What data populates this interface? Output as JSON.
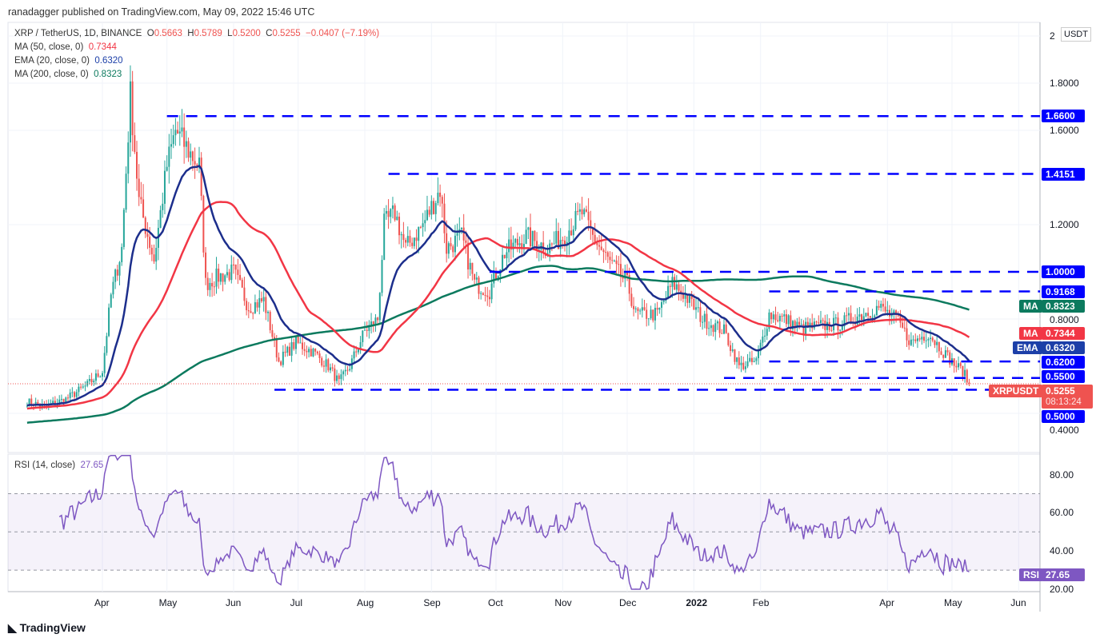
{
  "header": {
    "published": "ranadagger published on TradingView.com, May 09, 2022 15:46 UTC"
  },
  "legend": {
    "symbol": "XRP / TetherUS, 1D, BINANCE",
    "o_label": "O",
    "o": "0.5663",
    "h_label": "H",
    "h": "0.5789",
    "l_label": "L",
    "l": "0.5200",
    "c_label": "C",
    "c": "0.5255",
    "change": "−0.0407 (−7.19%)",
    "ma50": "MA (50, close, 0)",
    "ma50_val": "0.7344",
    "ema20": "EMA (20, close, 0)",
    "ema20_val": "0.6320",
    "ma200": "MA (200, close, 0)",
    "ma200_val": "0.8323"
  },
  "rsi_legend": {
    "label": "RSI (14, close)",
    "value": "27.65"
  },
  "axis": {
    "currency": "USDT",
    "price_ticks": [
      "2",
      "1.8000",
      "1.6000",
      "1.2000",
      "0.8000",
      "0.4000"
    ],
    "rsi_ticks": [
      "80.00",
      "60.00",
      "40.00",
      "20.00"
    ],
    "months": [
      "Apr",
      "May",
      "Jun",
      "Jul",
      "Aug",
      "Sep",
      "Oct",
      "Nov",
      "Dec",
      "2022",
      "Feb",
      "Apr",
      "May",
      "Jun"
    ]
  },
  "tags": {
    "ma200": {
      "name": "MA",
      "value": "0.8323"
    },
    "ma50": {
      "name": "MA",
      "value": "0.7344"
    },
    "ema20": {
      "name": "EMA",
      "value": "0.6320"
    },
    "price": {
      "name": "XRPUSDT",
      "value": "0.5255",
      "countdown": "08:13:24"
    },
    "rsi": {
      "name": "RSI",
      "value": "27.65"
    }
  },
  "levels": [
    {
      "label": "1.6600",
      "value": 1.66,
      "from": "2021-05-01"
    },
    {
      "label": "1.4151",
      "value": 1.4151,
      "from": "2021-08-12"
    },
    {
      "label": "1.0000",
      "value": 1.0,
      "from": "2021-09-28"
    },
    {
      "label": "0.9168",
      "value": 0.9168,
      "from": "2022-02-05"
    },
    {
      "label": "0.6200",
      "value": 0.62,
      "from": "2022-02-05"
    },
    {
      "label": "0.5500",
      "value": 0.55,
      "from": "2022-01-15"
    },
    {
      "label": "0.5000",
      "value": 0.5,
      "from": "2021-06-20"
    }
  ],
  "colors": {
    "up": "#26a69a",
    "down": "#ef5350",
    "ma50": "#f23645",
    "ema20": "#1c2e8c",
    "ma200": "#0c7a5e",
    "level": "#0000ff",
    "rsi": "#7e57c2"
  },
  "footer": {
    "brand": "TradingView"
  },
  "chart_data": {
    "type": "candlestick",
    "title": "XRP / TetherUS, 1D, BINANCE",
    "ylim": [
      0.4,
      2.0
    ],
    "rsi_ylim": [
      20,
      90
    ],
    "keypoints": [
      [
        "2021-02-25",
        0.45
      ],
      [
        "2021-03-05",
        0.43
      ],
      [
        "2021-03-15",
        0.46
      ],
      [
        "2021-03-25",
        0.52
      ],
      [
        "2021-04-01",
        0.58
      ],
      [
        "2021-04-05",
        0.9
      ],
      [
        "2021-04-10",
        1.1
      ],
      [
        "2021-04-14",
        1.75
      ],
      [
        "2021-04-18",
        1.3
      ],
      [
        "2021-04-25",
        1.05
      ],
      [
        "2021-05-01",
        1.45
      ],
      [
        "2021-05-05",
        1.6
      ],
      [
        "2021-05-12",
        1.5
      ],
      [
        "2021-05-16",
        1.45
      ],
      [
        "2021-05-19",
        0.95
      ],
      [
        "2021-05-25",
        0.98
      ],
      [
        "2021-06-01",
        1.0
      ],
      [
        "2021-06-08",
        0.85
      ],
      [
        "2021-06-15",
        0.88
      ],
      [
        "2021-06-22",
        0.62
      ],
      [
        "2021-06-30",
        0.7
      ],
      [
        "2021-07-08",
        0.66
      ],
      [
        "2021-07-15",
        0.6
      ],
      [
        "2021-07-20",
        0.53
      ],
      [
        "2021-07-25",
        0.6
      ],
      [
        "2021-08-01",
        0.75
      ],
      [
        "2021-08-07",
        0.8
      ],
      [
        "2021-08-10",
        1.2
      ],
      [
        "2021-08-15",
        1.25
      ],
      [
        "2021-08-20",
        1.1
      ],
      [
        "2021-08-28",
        1.2
      ],
      [
        "2021-09-05",
        1.35
      ],
      [
        "2021-09-08",
        1.1
      ],
      [
        "2021-09-15",
        1.15
      ],
      [
        "2021-09-21",
        0.95
      ],
      [
        "2021-09-28",
        0.92
      ],
      [
        "2021-10-05",
        1.08
      ],
      [
        "2021-10-15",
        1.15
      ],
      [
        "2021-10-25",
        1.1
      ],
      [
        "2021-11-01",
        1.15
      ],
      [
        "2021-11-10",
        1.25
      ],
      [
        "2021-11-15",
        1.15
      ],
      [
        "2021-11-22",
        1.05
      ],
      [
        "2021-12-01",
        0.95
      ],
      [
        "2021-12-05",
        0.82
      ],
      [
        "2021-12-15",
        0.82
      ],
      [
        "2021-12-22",
        0.95
      ],
      [
        "2021-12-28",
        0.9
      ],
      [
        "2022-01-05",
        0.8
      ],
      [
        "2022-01-15",
        0.75
      ],
      [
        "2022-01-22",
        0.6
      ],
      [
        "2022-01-30",
        0.62
      ],
      [
        "2022-02-05",
        0.82
      ],
      [
        "2022-02-12",
        0.8
      ],
      [
        "2022-02-20",
        0.76
      ],
      [
        "2022-03-01",
        0.77
      ],
      [
        "2022-03-10",
        0.78
      ],
      [
        "2022-03-20",
        0.82
      ],
      [
        "2022-03-28",
        0.85
      ],
      [
        "2022-04-05",
        0.8
      ],
      [
        "2022-04-12",
        0.7
      ],
      [
        "2022-04-20",
        0.74
      ],
      [
        "2022-04-28",
        0.65
      ],
      [
        "2022-05-03",
        0.6
      ],
      [
        "2022-05-06",
        0.58
      ],
      [
        "2022-05-09",
        0.5255
      ]
    ]
  }
}
